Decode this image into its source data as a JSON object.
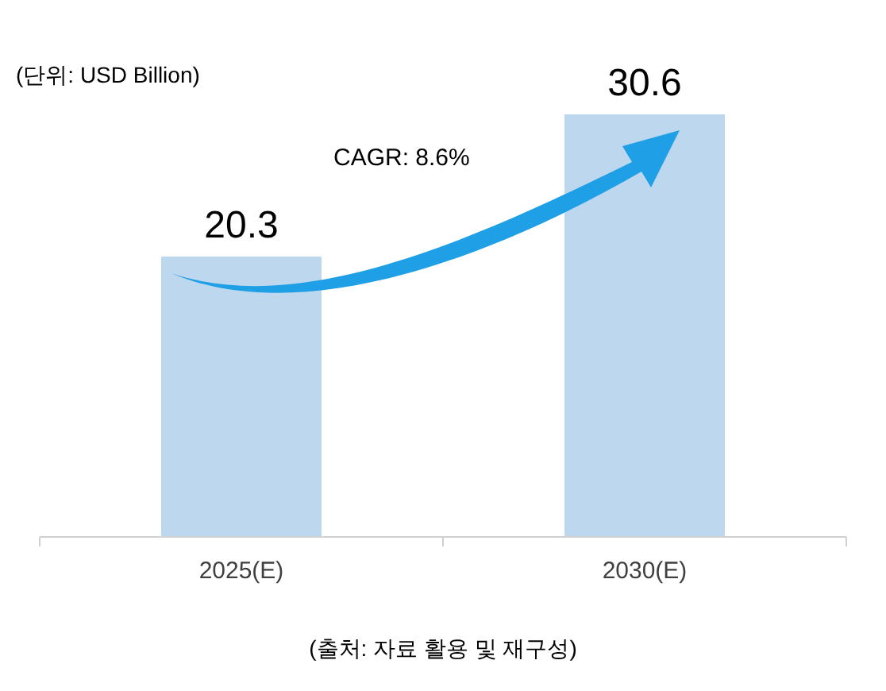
{
  "chart_data": {
    "type": "bar",
    "categories": [
      "2025(E)",
      "2030(E)"
    ],
    "values": [
      20.3,
      30.6
    ],
    "color": "#bdd7ee",
    "data_labels": true,
    "annotations": [
      "(단위: USD Billion)",
      "CAGR: 8.6%",
      "(출처: 자료 활용 및 재구성)"
    ]
  }
}
